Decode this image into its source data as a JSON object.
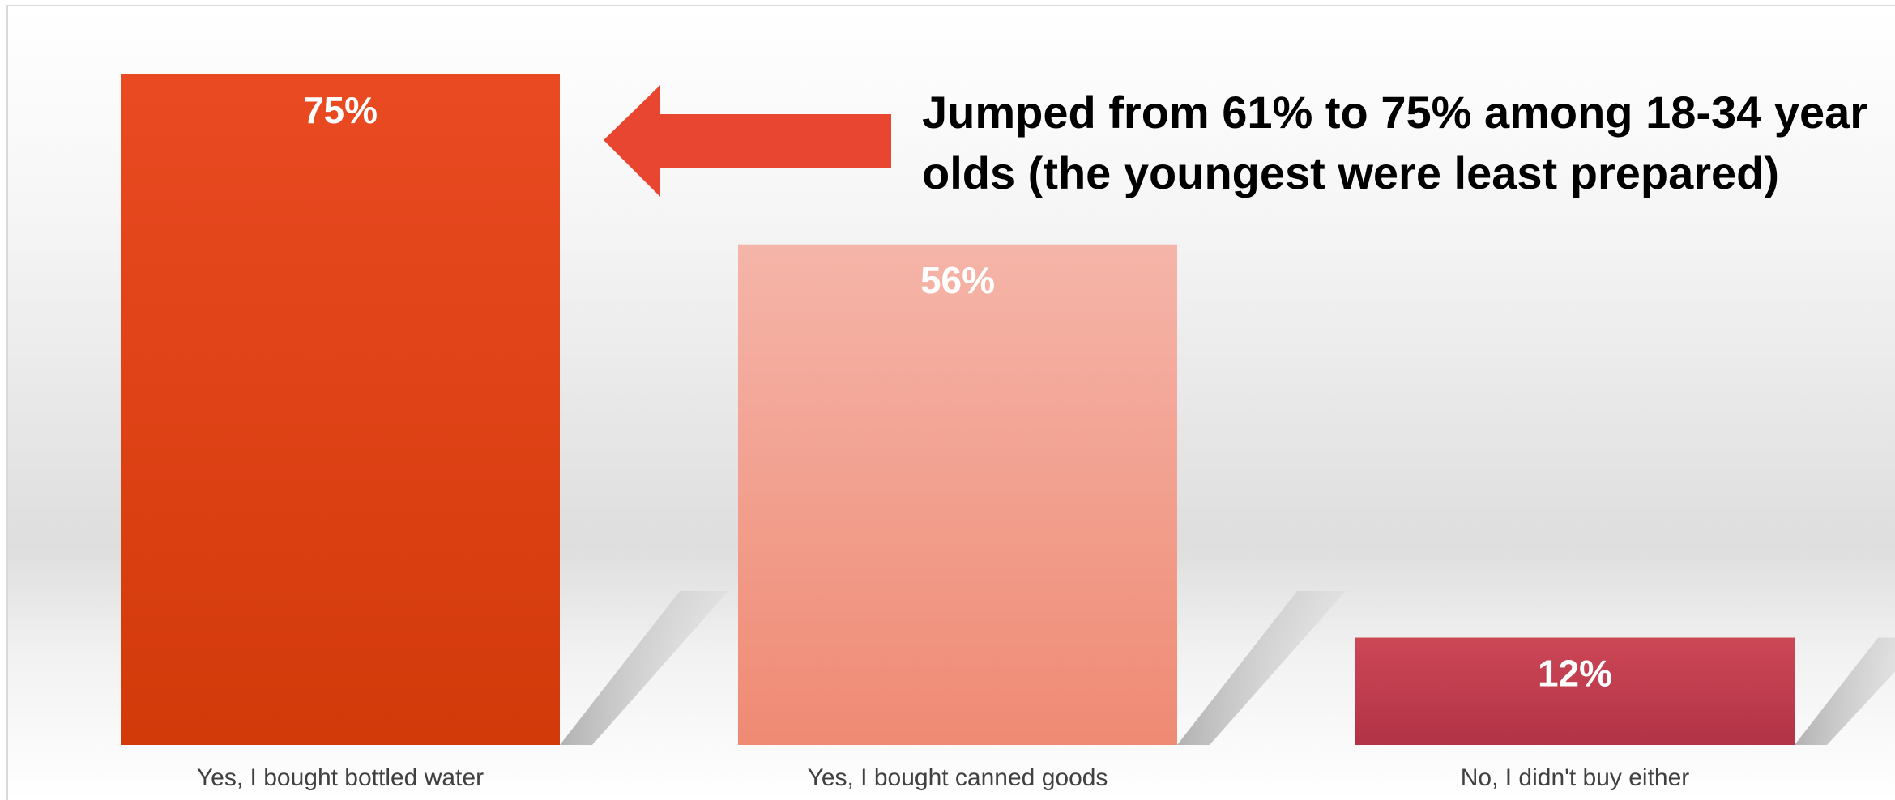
{
  "chart_data": {
    "type": "bar",
    "categories": [
      "Yes, I bought bottled water",
      "Yes, I bought canned goods",
      "No, I didn't buy either"
    ],
    "values": [
      75,
      56,
      12
    ],
    "data_labels": [
      "75%",
      "56%",
      "12%"
    ],
    "ylim": [
      0,
      75
    ],
    "grid": false,
    "legend": "none",
    "colors": {
      "bars_top": [
        "#ea4a22",
        "#f5b5a9",
        "#cc4756"
      ],
      "bars_bottom": [
        "#d23a0a",
        "#ef8a74",
        "#b23346"
      ]
    }
  },
  "annotation": {
    "lines": [
      "Jumped from 61% to 75% among 18-34 year",
      "olds (the youngest were least prepared)"
    ],
    "arrow_color": "#e84630",
    "points_to": "Yes, I bought bottled water"
  }
}
